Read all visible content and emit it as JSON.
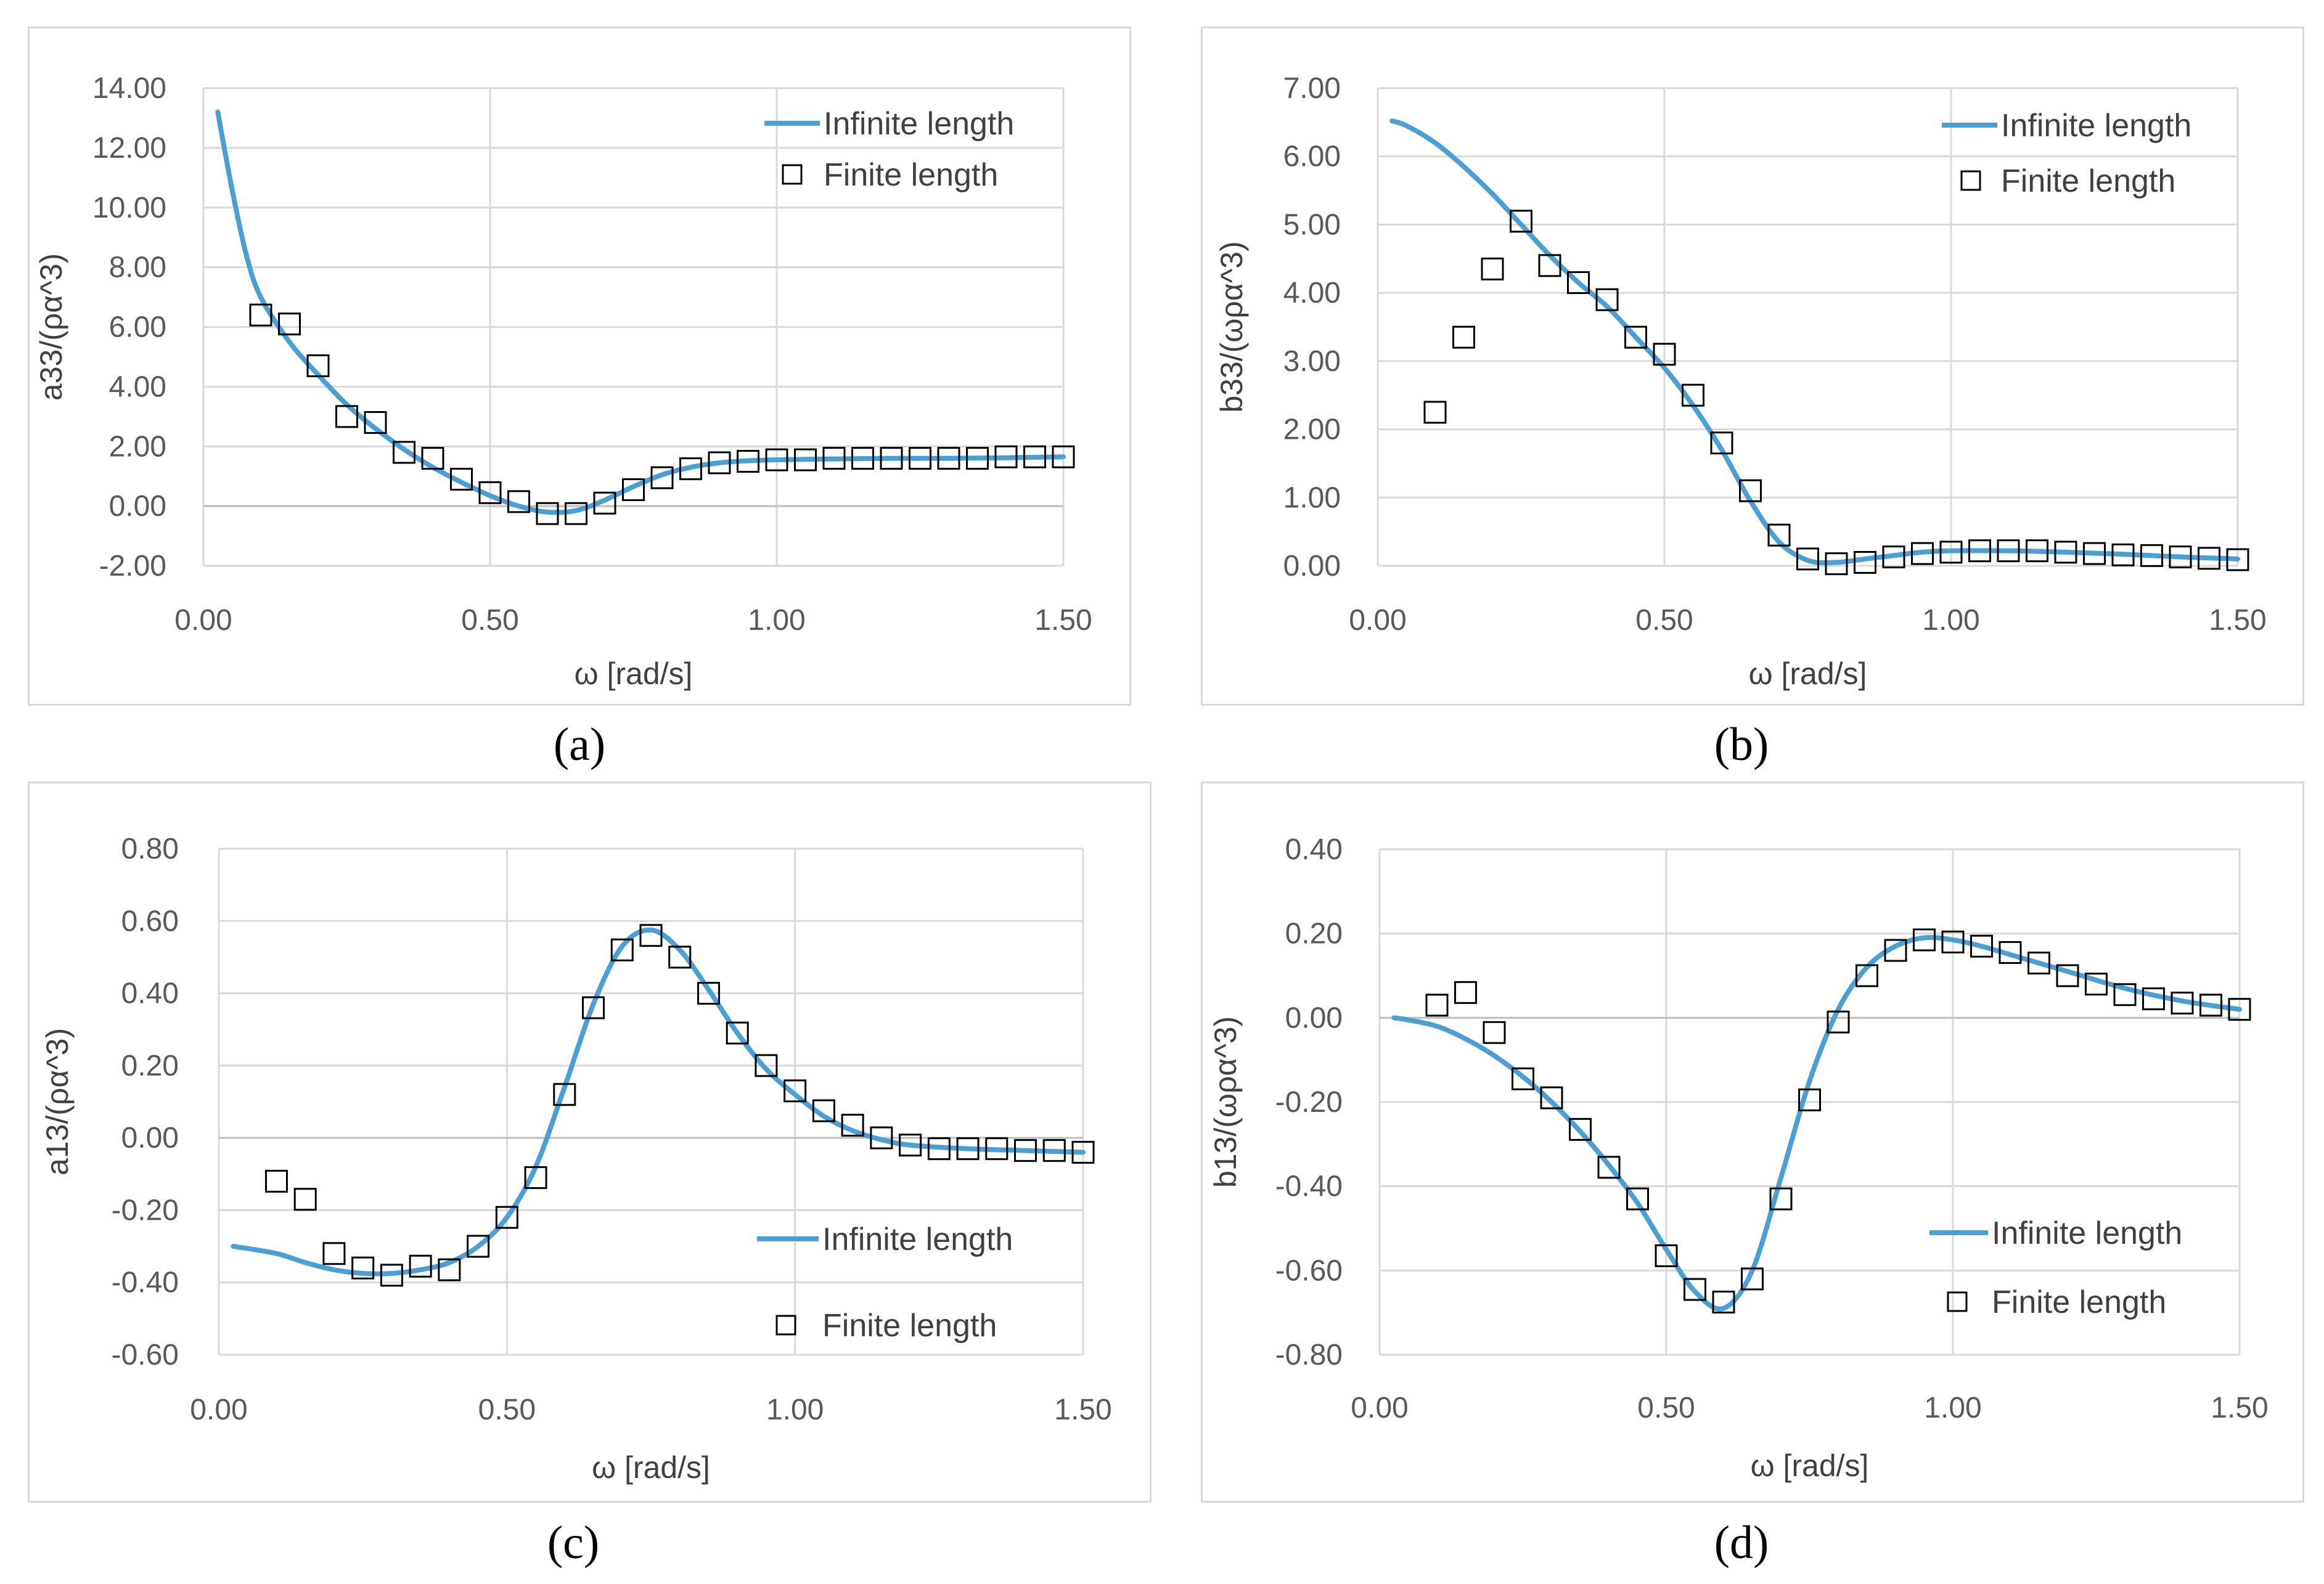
{
  "chart_data": [
    {
      "type": "line",
      "panel_caption": "(a)",
      "title": "",
      "xlabel": "ω [rad/s]",
      "ylabel": "a33/(ρα^3)",
      "xlim": [
        0,
        1.5
      ],
      "ylim": [
        -2,
        14
      ],
      "xticks": [
        0,
        0.5,
        1.0,
        1.5
      ],
      "xtick_labels": [
        "0.00",
        "0.50",
        "1.00",
        "1.50"
      ],
      "yticks": [
        -2,
        0,
        2,
        4,
        6,
        8,
        10,
        12,
        14
      ],
      "ytick_labels": [
        "-2.00",
        "0.00",
        "2.00",
        "4.00",
        "6.00",
        "8.00",
        "10.00",
        "12.00",
        "14.00"
      ],
      "legend": "top-right",
      "colors": {
        "line": "#4a9fd4",
        "marker": "#000000"
      },
      "series": [
        {
          "name": "Infinite length",
          "kind": "line",
          "x": [
            0.025,
            0.05,
            0.075,
            0.1,
            0.15,
            0.2,
            0.25,
            0.3,
            0.35,
            0.4,
            0.45,
            0.5,
            0.55,
            0.6,
            0.65,
            0.7,
            0.75,
            0.8,
            0.85,
            0.9,
            0.95,
            1.0,
            1.1,
            1.2,
            1.3,
            1.4,
            1.5
          ],
          "y": [
            13.2,
            10.6,
            8.4,
            7.0,
            5.5,
            4.4,
            3.4,
            2.6,
            1.9,
            1.3,
            0.8,
            0.35,
            0.0,
            -0.2,
            -0.15,
            0.2,
            0.65,
            1.05,
            1.3,
            1.45,
            1.52,
            1.55,
            1.58,
            1.6,
            1.6,
            1.62,
            1.65
          ]
        },
        {
          "name": "Finite length",
          "kind": "marker",
          "x": [
            0.1,
            0.15,
            0.2,
            0.25,
            0.3,
            0.35,
            0.4,
            0.45,
            0.5,
            0.55,
            0.6,
            0.65,
            0.7,
            0.75,
            0.8,
            0.85,
            0.9,
            0.95,
            1.0,
            1.05,
            1.1,
            1.15,
            1.2,
            1.25,
            1.3,
            1.35,
            1.4,
            1.45,
            1.5
          ],
          "y": [
            6.4,
            6.1,
            4.7,
            3.0,
            2.8,
            1.8,
            1.6,
            0.9,
            0.45,
            0.15,
            -0.25,
            -0.25,
            0.1,
            0.55,
            0.95,
            1.25,
            1.45,
            1.5,
            1.55,
            1.55,
            1.6,
            1.6,
            1.6,
            1.6,
            1.6,
            1.6,
            1.65,
            1.65,
            1.65
          ]
        }
      ]
    },
    {
      "type": "line",
      "panel_caption": "(b)",
      "title": "",
      "xlabel": "ω [rad/s]",
      "ylabel": "b33/(ωρα^3)",
      "xlim": [
        0,
        1.5
      ],
      "ylim": [
        0,
        7
      ],
      "xticks": [
        0,
        0.5,
        1.0,
        1.5
      ],
      "xtick_labels": [
        "0.00",
        "0.50",
        "1.00",
        "1.50"
      ],
      "yticks": [
        0,
        1,
        2,
        3,
        4,
        5,
        6,
        7
      ],
      "ytick_labels": [
        "0.00",
        "1.00",
        "2.00",
        "3.00",
        "4.00",
        "5.00",
        "6.00",
        "7.00"
      ],
      "legend": "top-right",
      "colors": {
        "line": "#4a9fd4",
        "marker": "#000000"
      },
      "series": [
        {
          "name": "Infinite length",
          "kind": "line",
          "x": [
            0.025,
            0.05,
            0.1,
            0.15,
            0.2,
            0.25,
            0.3,
            0.35,
            0.4,
            0.45,
            0.5,
            0.55,
            0.6,
            0.65,
            0.7,
            0.75,
            0.8,
            0.85,
            0.9,
            0.95,
            1.0,
            1.1,
            1.2,
            1.3,
            1.4,
            1.5
          ],
          "y": [
            6.52,
            6.45,
            6.2,
            5.85,
            5.45,
            5.0,
            4.55,
            4.15,
            3.8,
            3.35,
            2.9,
            2.35,
            1.7,
            0.95,
            0.35,
            0.08,
            0.05,
            0.1,
            0.15,
            0.2,
            0.22,
            0.22,
            0.2,
            0.17,
            0.13,
            0.1
          ]
        },
        {
          "name": "Finite length",
          "kind": "marker",
          "x": [
            0.1,
            0.15,
            0.2,
            0.25,
            0.3,
            0.35,
            0.4,
            0.45,
            0.5,
            0.55,
            0.6,
            0.65,
            0.7,
            0.75,
            0.8,
            0.85,
            0.9,
            0.95,
            1.0,
            1.05,
            1.1,
            1.15,
            1.2,
            1.25,
            1.3,
            1.35,
            1.4,
            1.45,
            1.5
          ],
          "y": [
            2.25,
            3.35,
            4.35,
            5.05,
            4.4,
            4.15,
            3.9,
            3.35,
            3.1,
            2.5,
            1.8,
            1.1,
            0.45,
            0.1,
            0.03,
            0.05,
            0.13,
            0.18,
            0.2,
            0.22,
            0.22,
            0.22,
            0.2,
            0.18,
            0.16,
            0.15,
            0.13,
            0.11,
            0.09
          ]
        }
      ]
    },
    {
      "type": "line",
      "panel_caption": "(c)",
      "title": "",
      "xlabel": "ω [rad/s]",
      "ylabel": "a13/(ρα^3)",
      "xlim": [
        0,
        1.5
      ],
      "ylim": [
        -0.6,
        0.8
      ],
      "xticks": [
        0,
        0.5,
        1.0,
        1.5
      ],
      "xtick_labels": [
        "0.00",
        "0.50",
        "1.00",
        "1.50"
      ],
      "yticks": [
        -0.6,
        -0.4,
        -0.2,
        0,
        0.2,
        0.4,
        0.6,
        0.8
      ],
      "ytick_labels": [
        "-0.60",
        "-0.40",
        "-0.20",
        "0.00",
        "0.20",
        "0.40",
        "0.60",
        "0.80"
      ],
      "legend": "bottom-right",
      "colors": {
        "line": "#4a9fd4",
        "marker": "#000000"
      },
      "series": [
        {
          "name": "Infinite length",
          "kind": "line",
          "x": [
            0.025,
            0.1,
            0.15,
            0.2,
            0.25,
            0.3,
            0.35,
            0.4,
            0.45,
            0.5,
            0.55,
            0.6,
            0.65,
            0.7,
            0.75,
            0.8,
            0.85,
            0.9,
            0.95,
            1.0,
            1.05,
            1.1,
            1.15,
            1.2,
            1.3,
            1.4,
            1.5
          ],
          "y": [
            -0.3,
            -0.32,
            -0.345,
            -0.365,
            -0.375,
            -0.375,
            -0.365,
            -0.345,
            -0.3,
            -0.22,
            -0.08,
            0.14,
            0.37,
            0.53,
            0.575,
            0.52,
            0.41,
            0.29,
            0.19,
            0.12,
            0.06,
            0.02,
            -0.005,
            -0.02,
            -0.03,
            -0.035,
            -0.04
          ]
        },
        {
          "name": "Finite length",
          "kind": "marker",
          "x": [
            0.1,
            0.15,
            0.2,
            0.25,
            0.3,
            0.35,
            0.4,
            0.45,
            0.5,
            0.55,
            0.6,
            0.65,
            0.7,
            0.75,
            0.8,
            0.85,
            0.9,
            0.95,
            1.0,
            1.05,
            1.1,
            1.15,
            1.2,
            1.25,
            1.3,
            1.35,
            1.4,
            1.45,
            1.5
          ],
          "y": [
            -0.12,
            -0.17,
            -0.32,
            -0.36,
            -0.38,
            -0.355,
            -0.365,
            -0.3,
            -0.22,
            -0.11,
            0.12,
            0.36,
            0.52,
            0.56,
            0.5,
            0.4,
            0.29,
            0.2,
            0.13,
            0.075,
            0.035,
            0.0,
            -0.02,
            -0.03,
            -0.03,
            -0.03,
            -0.035,
            -0.035,
            -0.04
          ]
        }
      ]
    },
    {
      "type": "line",
      "panel_caption": "(d)",
      "title": "",
      "xlabel": "ω  [rad/s]",
      "ylabel": "b13/(ωρα^3)",
      "xlim": [
        0,
        1.5
      ],
      "ylim": [
        -0.8,
        0.4
      ],
      "xticks": [
        0,
        0.5,
        1.0,
        1.5
      ],
      "xtick_labels": [
        "0.00",
        "0.50",
        "1.00",
        "1.50"
      ],
      "yticks": [
        -0.8,
        -0.6,
        -0.4,
        -0.2,
        0,
        0.2,
        0.4
      ],
      "ytick_labels": [
        "-0.80",
        "-0.60",
        "-0.40",
        "-0.20",
        "0.00",
        "0.20",
        "0.40"
      ],
      "legend": "bottom-right",
      "colors": {
        "line": "#4a9fd4",
        "marker": "#000000"
      },
      "series": [
        {
          "name": "Infinite length",
          "kind": "line",
          "x": [
            0.025,
            0.05,
            0.1,
            0.15,
            0.2,
            0.25,
            0.3,
            0.35,
            0.4,
            0.45,
            0.5,
            0.55,
            0.6,
            0.65,
            0.7,
            0.75,
            0.8,
            0.85,
            0.9,
            0.95,
            1.0,
            1.05,
            1.1,
            1.2,
            1.3,
            1.4,
            1.5
          ],
          "y": [
            0.0,
            -0.005,
            -0.02,
            -0.05,
            -0.09,
            -0.14,
            -0.2,
            -0.27,
            -0.35,
            -0.44,
            -0.55,
            -0.65,
            -0.69,
            -0.6,
            -0.38,
            -0.15,
            0.02,
            0.12,
            0.17,
            0.19,
            0.185,
            0.17,
            0.15,
            0.11,
            0.07,
            0.04,
            0.02
          ]
        },
        {
          "name": "Finite length",
          "kind": "marker",
          "x": [
            0.1,
            0.15,
            0.2,
            0.25,
            0.3,
            0.35,
            0.4,
            0.45,
            0.5,
            0.55,
            0.6,
            0.65,
            0.7,
            0.75,
            0.8,
            0.85,
            0.9,
            0.95,
            1.0,
            1.05,
            1.1,
            1.15,
            1.2,
            1.25,
            1.3,
            1.35,
            1.4,
            1.45,
            1.5
          ],
          "y": [
            0.03,
            0.06,
            -0.035,
            -0.145,
            -0.19,
            -0.265,
            -0.355,
            -0.43,
            -0.565,
            -0.645,
            -0.675,
            -0.62,
            -0.43,
            -0.195,
            -0.01,
            0.1,
            0.16,
            0.185,
            0.18,
            0.17,
            0.155,
            0.13,
            0.1,
            0.08,
            0.055,
            0.045,
            0.035,
            0.03,
            0.02
          ]
        }
      ]
    }
  ]
}
